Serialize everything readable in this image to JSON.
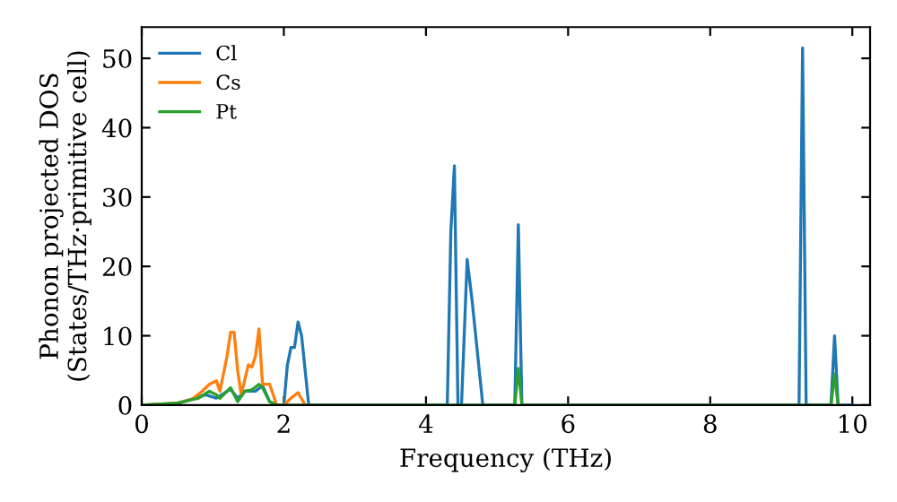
{
  "chart_data": {
    "type": "line",
    "xlabel": "Frequency (THz)",
    "ylabel": "Phonon projected DOS\n(States/THz·primitive cell)",
    "xlim": [
      0,
      10.25
    ],
    "ylim": [
      0,
      54.5
    ],
    "xticks": [
      0,
      2,
      4,
      6,
      8,
      10
    ],
    "yticks": [
      0,
      10,
      20,
      30,
      40,
      50
    ],
    "grid": false,
    "legend": "top left",
    "marker": "none",
    "line_style": "solid",
    "series": [
      {
        "name": "Cl",
        "color": "#1f77b4",
        "x": [
          0,
          0.5,
          0.9,
          1.05,
          1.25,
          1.35,
          1.45,
          1.6,
          1.7,
          1.8,
          1.9,
          2.0,
          2.05,
          2.1,
          2.15,
          2.2,
          2.25,
          2.35,
          4.3,
          4.35,
          4.4,
          4.45,
          4.5,
          4.58,
          4.65,
          4.75,
          4.8,
          5.25,
          5.3,
          5.35,
          9.25,
          9.3,
          9.35,
          9.7,
          9.75,
          9.8,
          10.0
        ],
        "values": [
          0,
          0.2,
          1.5,
          1,
          2.3,
          1,
          2,
          2,
          2.8,
          0.5,
          0,
          0,
          5.8,
          8.3,
          8.3,
          12,
          10,
          0,
          0,
          25,
          34.5,
          0,
          0,
          21,
          15,
          5,
          0,
          0,
          26,
          0,
          0,
          51.5,
          0,
          0,
          10,
          0,
          0
        ]
      },
      {
        "name": "Cs",
        "color": "#ff7f0e",
        "x": [
          0,
          0.5,
          0.7,
          0.85,
          0.95,
          1.05,
          1.1,
          1.2,
          1.25,
          1.3,
          1.35,
          1.4,
          1.5,
          1.55,
          1.6,
          1.65,
          1.7,
          1.8,
          1.9,
          2.0,
          2.1,
          2.2,
          2.3
        ],
        "values": [
          0,
          0.3,
          0.8,
          2,
          3,
          3.5,
          2,
          7,
          10.5,
          10.5,
          5,
          1.5,
          5.8,
          5.5,
          7,
          11,
          3,
          3,
          0,
          0,
          1,
          1.8,
          0
        ]
      },
      {
        "name": "Pt",
        "color": "#2ca02c",
        "x": [
          0,
          0.5,
          0.8,
          0.95,
          1.05,
          1.1,
          1.2,
          1.25,
          1.35,
          1.45,
          1.55,
          1.65,
          1.7,
          1.8,
          1.9,
          5.25,
          5.3,
          5.35,
          9.7,
          9.75,
          9.8
        ],
        "values": [
          0,
          0.3,
          1,
          2,
          1.5,
          1,
          2,
          2.5,
          0.5,
          2,
          2.2,
          3,
          2.5,
          0.5,
          0,
          0,
          5.3,
          0,
          0,
          4.5,
          0
        ]
      }
    ]
  }
}
